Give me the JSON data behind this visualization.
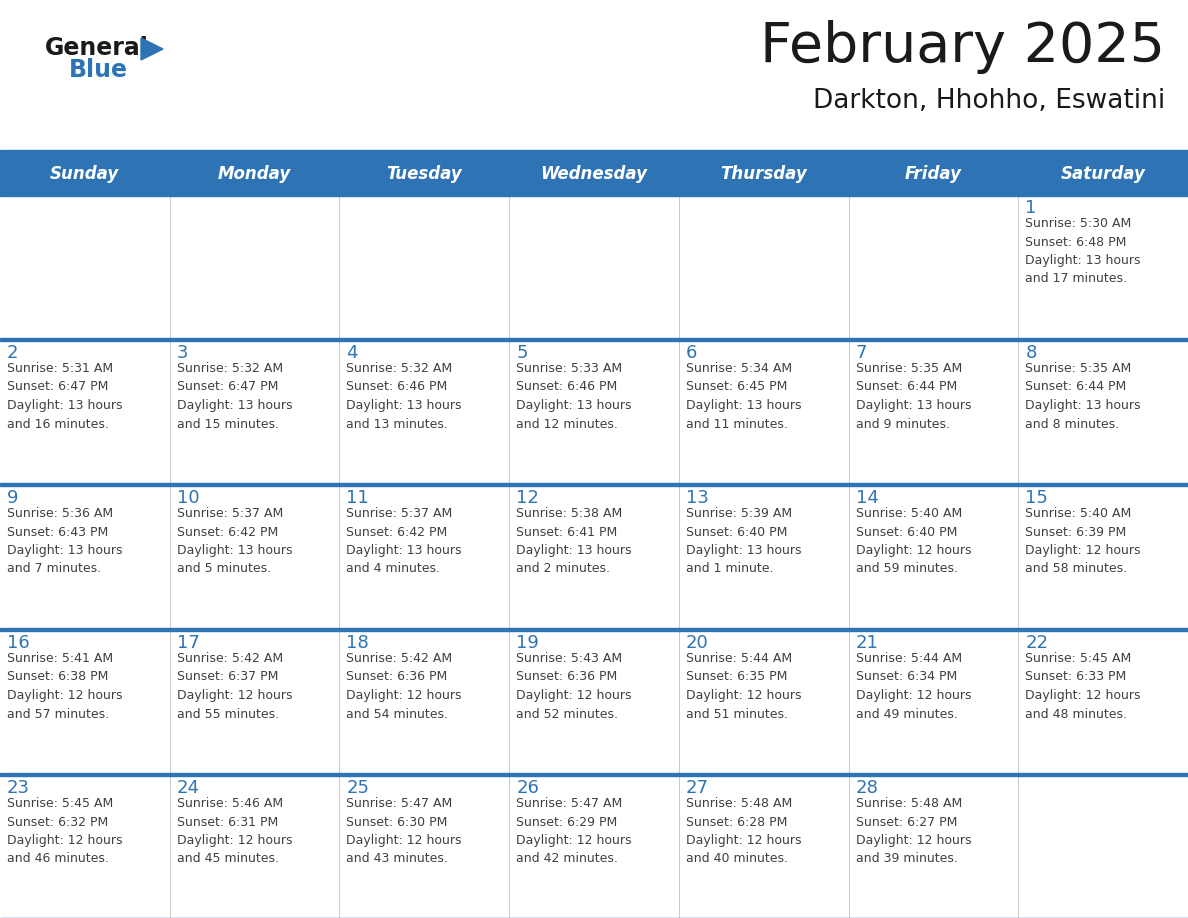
{
  "title": "February 2025",
  "subtitle": "Darkton, Hhohho, Eswatini",
  "days_of_week": [
    "Sunday",
    "Monday",
    "Tuesday",
    "Wednesday",
    "Thursday",
    "Friday",
    "Saturday"
  ],
  "header_bg": "#2E74B5",
  "header_text": "#FFFFFF",
  "row_bg": "#FFFFFF",
  "cell_text_color": "#404040",
  "day_num_color": "#2E74B5",
  "border_color": "#2E74B5",
  "title_color": "#1A1A1A",
  "subtitle_color": "#1A1A1A",
  "logo_general_color": "#1A1A1A",
  "logo_blue_color": "#2E74B5",
  "weeks": [
    [
      {
        "day": null,
        "info": null
      },
      {
        "day": null,
        "info": null
      },
      {
        "day": null,
        "info": null
      },
      {
        "day": null,
        "info": null
      },
      {
        "day": null,
        "info": null
      },
      {
        "day": null,
        "info": null
      },
      {
        "day": 1,
        "info": "Sunrise: 5:30 AM\nSunset: 6:48 PM\nDaylight: 13 hours\nand 17 minutes."
      }
    ],
    [
      {
        "day": 2,
        "info": "Sunrise: 5:31 AM\nSunset: 6:47 PM\nDaylight: 13 hours\nand 16 minutes."
      },
      {
        "day": 3,
        "info": "Sunrise: 5:32 AM\nSunset: 6:47 PM\nDaylight: 13 hours\nand 15 minutes."
      },
      {
        "day": 4,
        "info": "Sunrise: 5:32 AM\nSunset: 6:46 PM\nDaylight: 13 hours\nand 13 minutes."
      },
      {
        "day": 5,
        "info": "Sunrise: 5:33 AM\nSunset: 6:46 PM\nDaylight: 13 hours\nand 12 minutes."
      },
      {
        "day": 6,
        "info": "Sunrise: 5:34 AM\nSunset: 6:45 PM\nDaylight: 13 hours\nand 11 minutes."
      },
      {
        "day": 7,
        "info": "Sunrise: 5:35 AM\nSunset: 6:44 PM\nDaylight: 13 hours\nand 9 minutes."
      },
      {
        "day": 8,
        "info": "Sunrise: 5:35 AM\nSunset: 6:44 PM\nDaylight: 13 hours\nand 8 minutes."
      }
    ],
    [
      {
        "day": 9,
        "info": "Sunrise: 5:36 AM\nSunset: 6:43 PM\nDaylight: 13 hours\nand 7 minutes."
      },
      {
        "day": 10,
        "info": "Sunrise: 5:37 AM\nSunset: 6:42 PM\nDaylight: 13 hours\nand 5 minutes."
      },
      {
        "day": 11,
        "info": "Sunrise: 5:37 AM\nSunset: 6:42 PM\nDaylight: 13 hours\nand 4 minutes."
      },
      {
        "day": 12,
        "info": "Sunrise: 5:38 AM\nSunset: 6:41 PM\nDaylight: 13 hours\nand 2 minutes."
      },
      {
        "day": 13,
        "info": "Sunrise: 5:39 AM\nSunset: 6:40 PM\nDaylight: 13 hours\nand 1 minute."
      },
      {
        "day": 14,
        "info": "Sunrise: 5:40 AM\nSunset: 6:40 PM\nDaylight: 12 hours\nand 59 minutes."
      },
      {
        "day": 15,
        "info": "Sunrise: 5:40 AM\nSunset: 6:39 PM\nDaylight: 12 hours\nand 58 minutes."
      }
    ],
    [
      {
        "day": 16,
        "info": "Sunrise: 5:41 AM\nSunset: 6:38 PM\nDaylight: 12 hours\nand 57 minutes."
      },
      {
        "day": 17,
        "info": "Sunrise: 5:42 AM\nSunset: 6:37 PM\nDaylight: 12 hours\nand 55 minutes."
      },
      {
        "day": 18,
        "info": "Sunrise: 5:42 AM\nSunset: 6:36 PM\nDaylight: 12 hours\nand 54 minutes."
      },
      {
        "day": 19,
        "info": "Sunrise: 5:43 AM\nSunset: 6:36 PM\nDaylight: 12 hours\nand 52 minutes."
      },
      {
        "day": 20,
        "info": "Sunrise: 5:44 AM\nSunset: 6:35 PM\nDaylight: 12 hours\nand 51 minutes."
      },
      {
        "day": 21,
        "info": "Sunrise: 5:44 AM\nSunset: 6:34 PM\nDaylight: 12 hours\nand 49 minutes."
      },
      {
        "day": 22,
        "info": "Sunrise: 5:45 AM\nSunset: 6:33 PM\nDaylight: 12 hours\nand 48 minutes."
      }
    ],
    [
      {
        "day": 23,
        "info": "Sunrise: 5:45 AM\nSunset: 6:32 PM\nDaylight: 12 hours\nand 46 minutes."
      },
      {
        "day": 24,
        "info": "Sunrise: 5:46 AM\nSunset: 6:31 PM\nDaylight: 12 hours\nand 45 minutes."
      },
      {
        "day": 25,
        "info": "Sunrise: 5:47 AM\nSunset: 6:30 PM\nDaylight: 12 hours\nand 43 minutes."
      },
      {
        "day": 26,
        "info": "Sunrise: 5:47 AM\nSunset: 6:29 PM\nDaylight: 12 hours\nand 42 minutes."
      },
      {
        "day": 27,
        "info": "Sunrise: 5:48 AM\nSunset: 6:28 PM\nDaylight: 12 hours\nand 40 minutes."
      },
      {
        "day": 28,
        "info": "Sunrise: 5:48 AM\nSunset: 6:27 PM\nDaylight: 12 hours\nand 39 minutes."
      },
      {
        "day": null,
        "info": null
      }
    ]
  ]
}
